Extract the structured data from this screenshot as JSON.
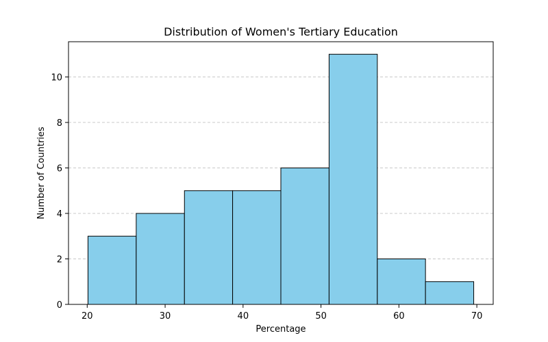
{
  "chart_data": {
    "type": "bar",
    "title": "Distribution of Women's Tertiary Education",
    "xlabel": "Percentage",
    "ylabel": "Number of Countries",
    "bin_edges": [
      20.1,
      26.29,
      32.48,
      38.66,
      44.85,
      51.04,
      57.23,
      63.41,
      69.6
    ],
    "values": [
      3,
      4,
      5,
      5,
      6,
      11,
      2,
      1
    ],
    "xlim": [
      17.6,
      72.1
    ],
    "ylim": [
      0,
      11.55
    ],
    "xticks": [
      20,
      30,
      40,
      50,
      60,
      70
    ],
    "yticks": [
      0,
      2,
      4,
      6,
      8,
      10
    ],
    "grid": "y-dashed",
    "legend": "none",
    "colors": {
      "bar_fill": "#87CEEB",
      "bar_edge": "#000000",
      "grid": "#c8c8c8"
    }
  }
}
